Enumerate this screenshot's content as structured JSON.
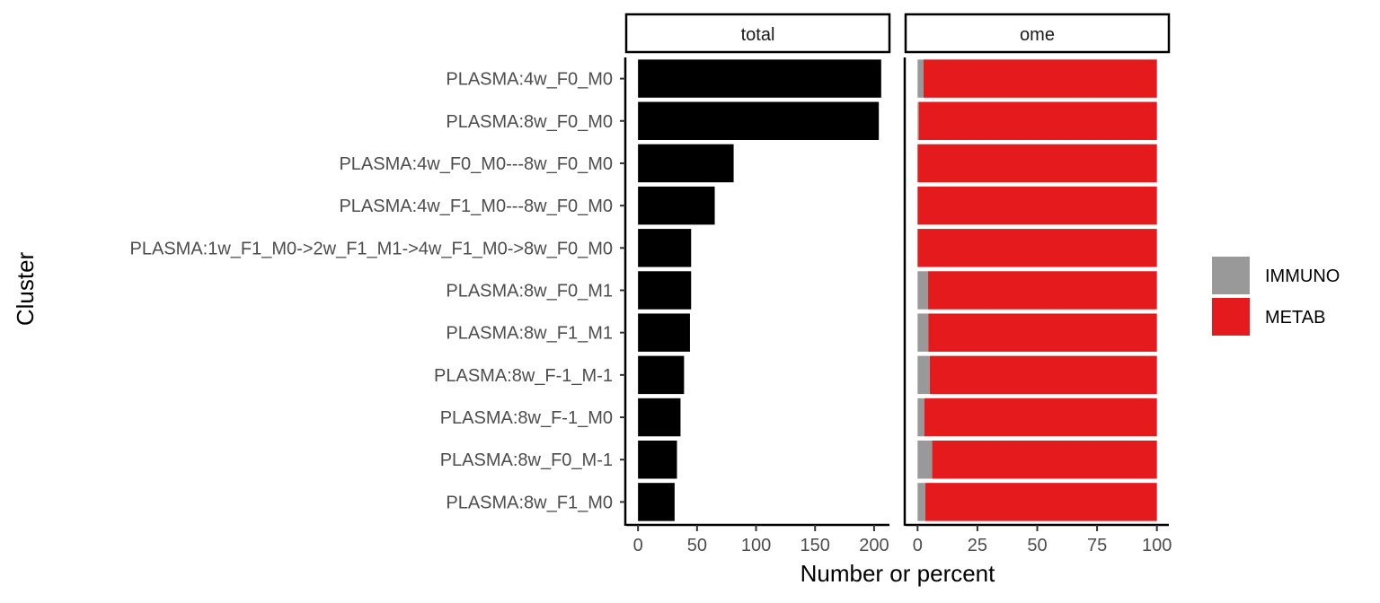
{
  "chart_data": {
    "type": "bar",
    "orientation": "horizontal",
    "xlabel": "Number or percent",
    "ylabel": "Cluster",
    "categories": [
      "PLASMA:4w_F0_M0",
      "PLASMA:8w_F0_M0",
      "PLASMA:4w_F0_M0---8w_F0_M0",
      "PLASMA:4w_F1_M0---8w_F0_M0",
      "PLASMA:1w_F1_M0->2w_F1_M1->4w_F1_M0->8w_F0_M0",
      "PLASMA:8w_F0_M1",
      "PLASMA:8w_F1_M1",
      "PLASMA:8w_F-1_M-1",
      "PLASMA:8w_F-1_M0",
      "PLASMA:8w_F0_M-1",
      "PLASMA:8w_F1_M0"
    ],
    "panels": [
      {
        "strip": "total",
        "type": "bar",
        "xlim": [
          -10,
          213
        ],
        "ticks": [
          0,
          50,
          100,
          150,
          200
        ],
        "series": [
          {
            "color": "#000000",
            "values": [
              206,
              204,
              81,
              65,
              45,
              45,
              44,
              39,
              36,
              33,
              31
            ]
          }
        ]
      },
      {
        "strip": "ome",
        "type": "stacked-bar",
        "xlim": [
          -5,
          105
        ],
        "ticks": [
          0,
          25,
          50,
          75,
          100
        ],
        "series": [
          {
            "name": "IMMUNO",
            "color": "#999999",
            "values": [
              2.5,
              0.5,
              0,
              0,
              0,
              4.4,
              4.5,
              5.1,
              2.8,
              6.1,
              3.2
            ]
          },
          {
            "name": "METAB",
            "color": "#e41a1c",
            "values": [
              97.5,
              99.5,
              100,
              100,
              100,
              95.6,
              95.5,
              94.9,
              97.2,
              93.9,
              96.8
            ]
          }
        ]
      }
    ],
    "legend": {
      "position": "right",
      "entries": [
        {
          "label": "IMMUNO",
          "color": "#999999"
        },
        {
          "label": "METAB",
          "color": "#e41a1c"
        }
      ]
    },
    "grid": false
  }
}
